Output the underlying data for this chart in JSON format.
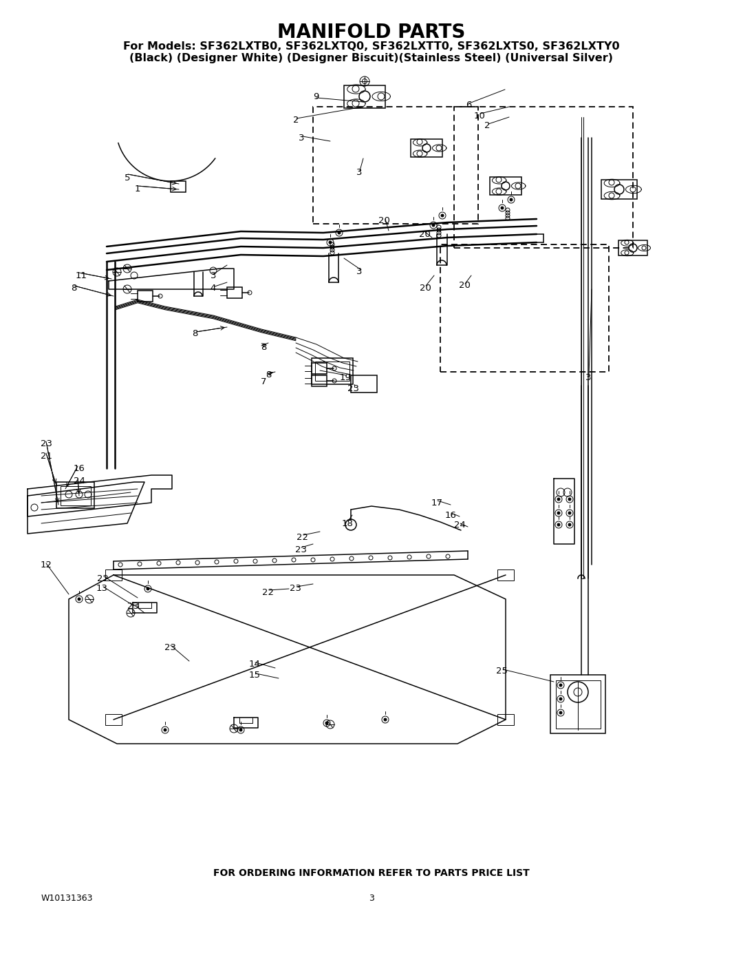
{
  "title": "MANIFOLD PARTS",
  "subtitle1": "For Models: SF362LXTB0, SF362LXTQ0, SF362LXTT0, SF362LXTS0, SF362LXTY0",
  "subtitle2": "(Black) (Designer White) (Designer Biscuit)(Stainless Steel) (Universal Silver)",
  "footer": "FOR ORDERING INFORMATION REFER TO PARTS PRICE LIST",
  "doc_number": "W10131363",
  "page_number": "3",
  "bg_color": "#ffffff",
  "text_color": "#000000",
  "title_fontsize": 20,
  "subtitle_fontsize": 11.5,
  "footer_fontsize": 10,
  "doc_fontsize": 9,
  "lw_thin": 0.7,
  "lw_med": 1.1,
  "lw_thick": 1.8,
  "labels": [
    [
      185,
      258,
      "5"
    ],
    [
      200,
      275,
      "1"
    ],
    [
      118,
      400,
      "11"
    ],
    [
      107,
      418,
      "8"
    ],
    [
      283,
      485,
      "8"
    ],
    [
      383,
      505,
      "8"
    ],
    [
      390,
      545,
      "8"
    ],
    [
      383,
      555,
      "7"
    ],
    [
      68,
      645,
      "23"
    ],
    [
      68,
      662,
      "21"
    ],
    [
      115,
      680,
      "16"
    ],
    [
      115,
      698,
      "24"
    ],
    [
      67,
      820,
      "12"
    ],
    [
      150,
      840,
      "22"
    ],
    [
      148,
      855,
      "13"
    ],
    [
      193,
      880,
      "23"
    ],
    [
      247,
      940,
      "23"
    ],
    [
      370,
      965,
      "14"
    ],
    [
      370,
      980,
      "15"
    ],
    [
      390,
      860,
      "22"
    ],
    [
      430,
      855,
      "23"
    ],
    [
      440,
      780,
      "22"
    ],
    [
      437,
      798,
      "23"
    ],
    [
      505,
      760,
      "18"
    ],
    [
      635,
      730,
      "17"
    ],
    [
      655,
      748,
      "16"
    ],
    [
      668,
      763,
      "24"
    ],
    [
      730,
      975,
      "25"
    ],
    [
      502,
      548,
      "19"
    ],
    [
      513,
      565,
      "23"
    ],
    [
      558,
      320,
      "20"
    ],
    [
      617,
      340,
      "20"
    ],
    [
      618,
      418,
      "20"
    ],
    [
      675,
      415,
      "20"
    ],
    [
      459,
      140,
      "9"
    ],
    [
      430,
      175,
      "2"
    ],
    [
      438,
      200,
      "3"
    ],
    [
      522,
      250,
      "3"
    ],
    [
      522,
      395,
      "3"
    ],
    [
      310,
      400,
      "3"
    ],
    [
      310,
      418,
      "4"
    ],
    [
      681,
      152,
      "6"
    ],
    [
      697,
      168,
      "10"
    ],
    [
      708,
      183,
      "2"
    ],
    [
      855,
      548,
      "3"
    ]
  ]
}
